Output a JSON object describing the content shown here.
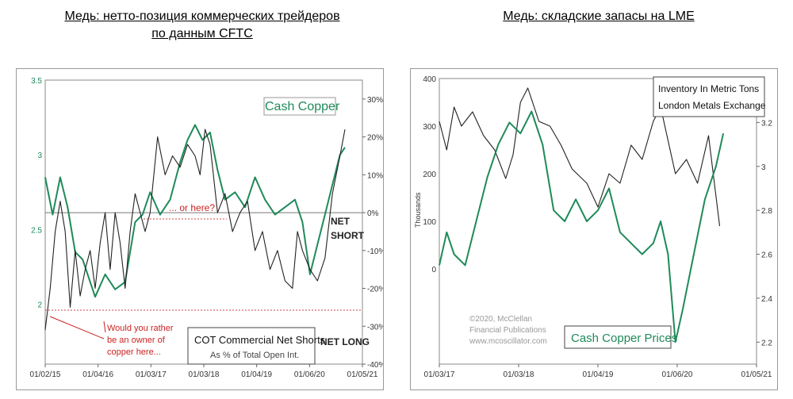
{
  "headings": {
    "left": [
      "Медь: нетто-позиция коммерческих трейдеров",
      "по данным CFTC"
    ],
    "right": "Медь: складские запасы на LME"
  },
  "chart_data": [
    {
      "type": "line",
      "x_ticks": [
        "01/02/15",
        "01/04/16",
        "01/03/17",
        "01/03/18",
        "01/04/19",
        "01/06/20",
        "01/05/21"
      ],
      "y_left_ticks": [
        "3.5",
        "3",
        "2.5",
        "2"
      ],
      "y_left_range": [
        1.6,
        3.5
      ],
      "y_right_ticks": [
        "30%",
        "20%",
        "10%",
        "0%",
        "-10%",
        "-20%",
        "-30%",
        "-40%"
      ],
      "y_right_range": [
        -40,
        35
      ],
      "legend_box": {
        "title": "COT Commercial Net Shorts",
        "subtitle": "As % of Total Open Int."
      },
      "annotations": {
        "series_label": "Cash Copper",
        "or_here": "... or here?",
        "net_short": [
          "NET",
          "SHORT"
        ],
        "net_long": "NET LONG",
        "owner_question": [
          "Would you rather",
          "be an owner of",
          "copper here..."
        ]
      },
      "series": [
        {
          "name": "Cash Copper",
          "color": "#1f8a5a",
          "axis": "left",
          "x": [
            2015.0,
            2015.15,
            2015.3,
            2015.45,
            2015.6,
            2015.75,
            2015.9,
            2016.0,
            2016.2,
            2016.4,
            2016.6,
            2016.8,
            2016.95,
            2017.1,
            2017.3,
            2017.5,
            2017.7,
            2017.85,
            2018.0,
            2018.15,
            2018.3,
            2018.45,
            2018.6,
            2018.8,
            2019.0,
            2019.2,
            2019.4,
            2019.6,
            2019.8,
            2020.0,
            2020.15,
            2020.3,
            2020.45,
            2020.6,
            2020.75,
            2020.9,
            2021.0
          ],
          "values": [
            2.85,
            2.6,
            2.85,
            2.65,
            2.35,
            2.3,
            2.15,
            2.05,
            2.2,
            2.1,
            2.15,
            2.55,
            2.6,
            2.75,
            2.6,
            2.7,
            2.95,
            3.1,
            3.2,
            3.1,
            3.15,
            2.9,
            2.7,
            2.75,
            2.65,
            2.85,
            2.7,
            2.6,
            2.65,
            2.7,
            2.55,
            2.2,
            2.4,
            2.6,
            2.8,
            3.0,
            3.05
          ]
        },
        {
          "name": "COT Commercial Net Shorts",
          "color": "#222222",
          "axis": "right",
          "x": [
            2015.0,
            2015.1,
            2015.2,
            2015.3,
            2015.4,
            2015.5,
            2015.6,
            2015.7,
            2015.8,
            2015.9,
            2016.0,
            2016.1,
            2016.2,
            2016.3,
            2016.4,
            2016.5,
            2016.6,
            2016.7,
            2016.8,
            2016.9,
            2017.0,
            2017.1,
            2017.25,
            2017.4,
            2017.55,
            2017.7,
            2017.85,
            2018.0,
            2018.1,
            2018.2,
            2018.3,
            2018.45,
            2018.6,
            2018.75,
            2018.9,
            2019.05,
            2019.2,
            2019.35,
            2019.5,
            2019.65,
            2019.8,
            2019.95,
            2020.05,
            2020.15,
            2020.3,
            2020.45,
            2020.6,
            2020.75,
            2020.9,
            2021.0
          ],
          "values": [
            -31,
            -20,
            -5,
            3,
            -5,
            -25,
            -10,
            -22,
            -15,
            -10,
            -20,
            -8,
            0,
            -15,
            0,
            -8,
            -20,
            -5,
            5,
            0,
            -5,
            0,
            20,
            10,
            15,
            12,
            18,
            15,
            10,
            22,
            18,
            0,
            5,
            -5,
            0,
            3,
            -10,
            -5,
            -15,
            -10,
            -18,
            -20,
            -5,
            -10,
            -15,
            -18,
            -12,
            5,
            15,
            22
          ]
        }
      ]
    },
    {
      "type": "line",
      "x_ticks": [
        "01/03/17",
        "01/03/18",
        "01/04/19",
        "01/06/20",
        "01/05/21"
      ],
      "y_left_ticks": [
        "400",
        "300",
        "200",
        "100",
        "0"
      ],
      "y_left_label": "Thousands",
      "y_left_range": [
        -200,
        400
      ],
      "y_right_ticks": [
        "3.2",
        "3",
        "2.8",
        "2.6",
        "2.4",
        "2.2"
      ],
      "y_right_range": [
        2.1,
        3.4
      ],
      "legend_box": {
        "title": "Inventory In Metric Tons",
        "subtitle": "London Metals Exchange"
      },
      "annotations": {
        "series_label": "Cash Copper Prices",
        "copyright": [
          "©2020, McClellan",
          "Financial Publications",
          "www.mcoscillator.com"
        ]
      },
      "series": [
        {
          "name": "Inventory In Metric Tons",
          "color": "#222222",
          "axis": "left",
          "x": [
            2017.0,
            2017.1,
            2017.2,
            2017.3,
            2017.45,
            2017.6,
            2017.75,
            2017.9,
            2018.0,
            2018.1,
            2018.2,
            2018.35,
            2018.5,
            2018.65,
            2018.8,
            2019.0,
            2019.15,
            2019.3,
            2019.45,
            2019.6,
            2019.75,
            2019.9,
            2020.0,
            2020.1,
            2020.2,
            2020.35,
            2020.5,
            2020.65,
            2020.8
          ],
          "values": [
            310,
            250,
            340,
            300,
            330,
            280,
            250,
            190,
            240,
            350,
            380,
            310,
            300,
            260,
            210,
            180,
            130,
            200,
            180,
            260,
            230,
            310,
            340,
            270,
            200,
            230,
            180,
            280,
            90
          ]
        },
        {
          "name": "Cash Copper Prices",
          "color": "#1f8a5a",
          "axis": "right",
          "x": [
            2017.0,
            2017.1,
            2017.2,
            2017.35,
            2017.5,
            2017.65,
            2017.8,
            2017.95,
            2018.1,
            2018.25,
            2018.4,
            2018.55,
            2018.7,
            2018.85,
            2019.0,
            2019.15,
            2019.3,
            2019.45,
            2019.6,
            2019.75,
            2019.9,
            2020.0,
            2020.1,
            2020.2,
            2020.3,
            2020.45,
            2020.6,
            2020.75,
            2020.85
          ],
          "values": [
            2.55,
            2.7,
            2.6,
            2.55,
            2.75,
            2.95,
            3.1,
            3.2,
            3.15,
            3.25,
            3.1,
            2.8,
            2.75,
            2.85,
            2.75,
            2.8,
            2.9,
            2.7,
            2.65,
            2.6,
            2.65,
            2.75,
            2.6,
            2.2,
            2.35,
            2.6,
            2.85,
            3.0,
            3.15
          ]
        }
      ]
    }
  ]
}
